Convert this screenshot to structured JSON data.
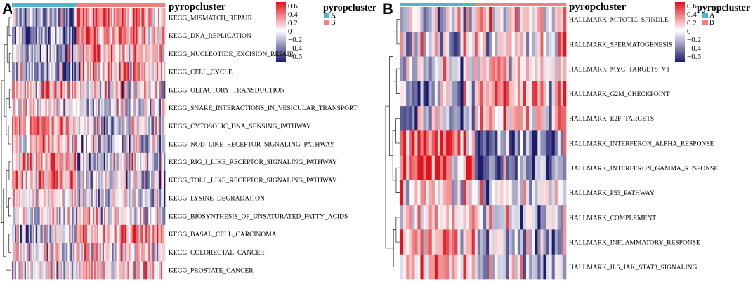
{
  "colors": {
    "cluster_a": "#4FB6C9",
    "cluster_b": "#EE8080",
    "low": "#1C1C6C",
    "mid": "#FFFFFF",
    "high": "#E0141C",
    "dendrogram": "#333333"
  },
  "chart_data": [
    {
      "type": "heatmap",
      "panel_label": "A",
      "annotation_title": "pyropcluster",
      "legend_title": "pyropcluster",
      "legend_entries": [
        {
          "label": "A",
          "color": "#4FB6C9"
        },
        {
          "label": "B",
          "color": "#EE8080"
        }
      ],
      "colorbar": {
        "ticks": [
          "0.6",
          "0.4",
          "0.2",
          "0",
          "−0.2",
          "−0.4",
          "−0.6"
        ],
        "range": [
          -0.7,
          0.65
        ]
      },
      "n_samples": 110,
      "cluster_a_count": 46,
      "rows": [
        {
          "label": "KEGG_MISMATCH_REPAIR",
          "a_mean": -0.3,
          "b_mean": 0.28
        },
        {
          "label": "KEGG_DNA_REPLICATION",
          "a_mean": -0.35,
          "b_mean": 0.32
        },
        {
          "label": "KEGG_NUCLEOTIDE_EXCISION_REPAIR",
          "a_mean": -0.18,
          "b_mean": 0.18
        },
        {
          "label": "KEGG_CELL_CYCLE",
          "a_mean": -0.25,
          "b_mean": 0.22
        },
        {
          "label": "KEGG_OLFACTORY_TRANSDUCTION",
          "a_mean": 0.2,
          "b_mean": 0.0
        },
        {
          "label": "KEGG_SNARE_INTERACTIONS_IN_VESICULAR_TRANSPORT",
          "a_mean": 0.05,
          "b_mean": -0.08
        },
        {
          "label": "KEGG_CYTOSOLIC_DNA_SENSING_PATHWAY",
          "a_mean": 0.25,
          "b_mean": -0.12
        },
        {
          "label": "KEGG_NOD_LIKE_RECEPTOR_SIGNALING_PATHWAY",
          "a_mean": 0.22,
          "b_mean": -0.1
        },
        {
          "label": "KEGG_RIG_I_LIKE_RECEPTOR_SIGNALING_PATHWAY",
          "a_mean": 0.25,
          "b_mean": -0.15
        },
        {
          "label": "KEGG_TOLL_LIKE_RECEPTOR_SIGNALING_PATHWAY",
          "a_mean": 0.25,
          "b_mean": -0.12
        },
        {
          "label": "KEGG_LYSINE_DEGRADATION",
          "a_mean": 0.05,
          "b_mean": -0.05
        },
        {
          "label": "KEGG_BIOSYNTHESIS_OF_UNSATURATED_FATTY_ACIDS",
          "a_mean": -0.05,
          "b_mean": 0.05
        },
        {
          "label": "KEGG_BASAL_CELL_CARCINOMA",
          "a_mean": -0.1,
          "b_mean": 0.18
        },
        {
          "label": "KEGG_COLORECTAL_CANCER",
          "a_mean": -0.05,
          "b_mean": 0.08
        },
        {
          "label": "KEGG_PROSTATE_CANCER",
          "a_mean": -0.05,
          "b_mean": 0.1
        }
      ]
    },
    {
      "type": "heatmap",
      "panel_label": "B",
      "annotation_title": "pyropcluster",
      "legend_title": "pyropcluster",
      "legend_entries": [
        {
          "label": "A",
          "color": "#4FB6C9"
        },
        {
          "label": "B",
          "color": "#EE8080"
        }
      ],
      "colorbar": {
        "ticks": [
          "0.6",
          "0.4",
          "0.2",
          "0",
          "−0.2",
          "−0.4",
          "−0.6"
        ],
        "range": [
          -0.7,
          0.65
        ]
      },
      "n_samples": 58,
      "cluster_a_count": 26,
      "rows": [
        {
          "label": "HALLMARK_MITOTIC_SPINDLE",
          "a_mean": -0.1,
          "b_mean": 0.08
        },
        {
          "label": "HALLMARK_SPERMATOGENESIS",
          "a_mean": -0.05,
          "b_mean": 0.03
        },
        {
          "label": "HALLMARK_MYC_TARGETS_V1",
          "a_mean": -0.18,
          "b_mean": 0.15
        },
        {
          "label": "HALLMARK_G2M_CHECKPOINT",
          "a_mean": -0.2,
          "b_mean": 0.2
        },
        {
          "label": "HALLMARK_E2F_TARGETS",
          "a_mean": -0.22,
          "b_mean": 0.22
        },
        {
          "label": "HALLMARK_INTERFERON_ALPHA_RESPONSE",
          "a_mean": 0.38,
          "b_mean": -0.32
        },
        {
          "label": "HALLMARK_INTERFERON_GAMMA_RESPONSE",
          "a_mean": 0.38,
          "b_mean": -0.35
        },
        {
          "label": "HALLMARK_P53_PATHWAY",
          "a_mean": 0.1,
          "b_mean": -0.05
        },
        {
          "label": "HALLMARK_COMPLEMENT",
          "a_mean": 0.12,
          "b_mean": -0.12
        },
        {
          "label": "HALLMARK_INFLAMMATORY_RESPONSE",
          "a_mean": 0.2,
          "b_mean": -0.2
        },
        {
          "label": "HALLMARK_IL6_JAK_STAT3_SIGNALING",
          "a_mean": 0.15,
          "b_mean": -0.18
        }
      ]
    }
  ]
}
